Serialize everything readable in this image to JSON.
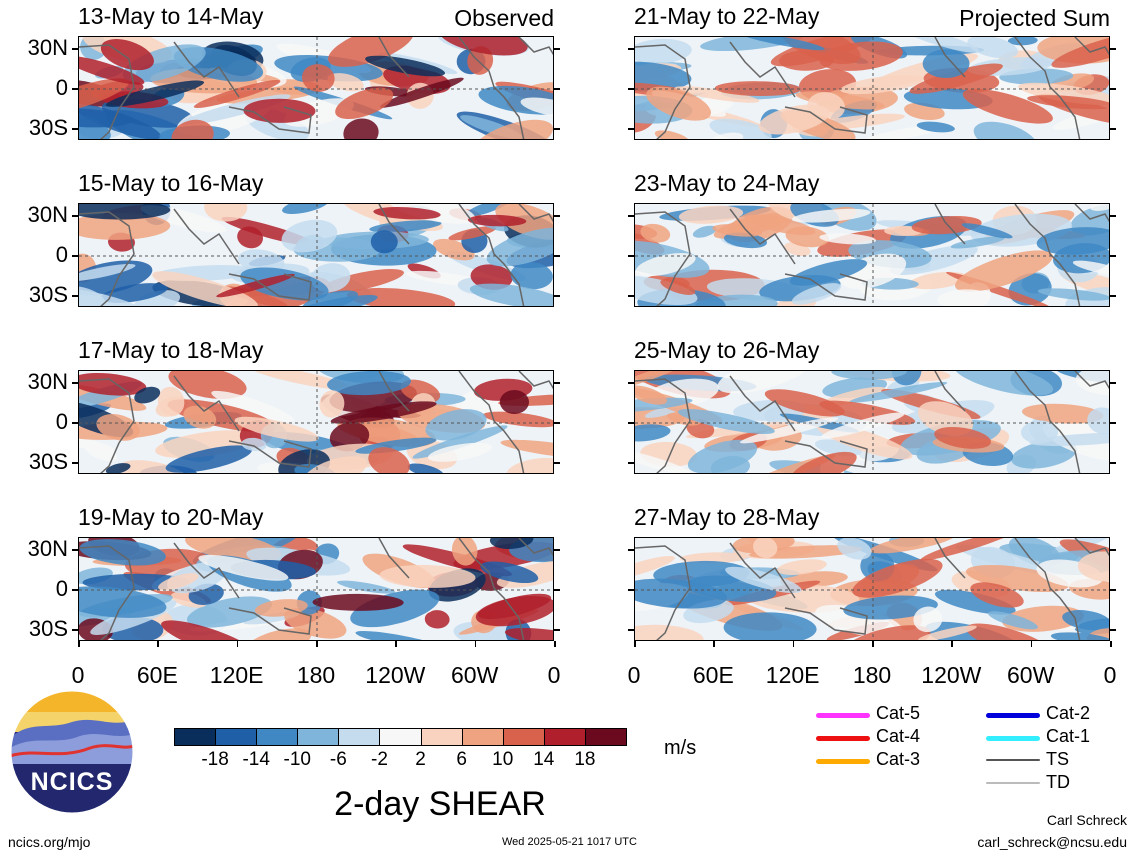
{
  "chart_data": {
    "type": "heatmap",
    "variable": "2-day SHEAR",
    "units": "m/s",
    "x_tick_labels": [
      "0",
      "60E",
      "120E",
      "180",
      "120W",
      "60W",
      "0"
    ],
    "y_tick_labels": [
      "30N",
      "0",
      "30S"
    ],
    "left_column_label": "Observed",
    "right_column_label": "Projected Sum",
    "panels_left": [
      {
        "title": "13-May to 14-May"
      },
      {
        "title": "15-May to 16-May"
      },
      {
        "title": "17-May to 18-May"
      },
      {
        "title": "19-May to 20-May"
      }
    ],
    "panels_right": [
      {
        "title": "21-May to 22-May"
      },
      {
        "title": "23-May to 24-May"
      },
      {
        "title": "25-May to 26-May"
      },
      {
        "title": "27-May to 28-May"
      }
    ],
    "colorbar": {
      "labels": [
        "-18",
        "-14",
        "-10",
        "-6",
        "-2",
        "2",
        "6",
        "10",
        "14",
        "18"
      ],
      "colors": [
        "#0a2e5c",
        "#1f5fa8",
        "#3f88c4",
        "#7fb5da",
        "#c4dcee",
        "#f7f7f7",
        "#f9d3c0",
        "#f0a380",
        "#d9624c",
        "#b0202c",
        "#6b0a1e"
      ]
    },
    "legend": [
      {
        "label": "Cat-5",
        "color": "#ff33ff"
      },
      {
        "label": "Cat-4",
        "color": "#ee1111"
      },
      {
        "label": "Cat-3",
        "color": "#ffaa00"
      },
      {
        "label": "Cat-2",
        "color": "#0000dd"
      },
      {
        "label": "Cat-1",
        "color": "#33eeff"
      },
      {
        "label": "TS",
        "color": "#555555"
      },
      {
        "label": "TD",
        "color": "#bbbbbb"
      }
    ]
  },
  "footer": {
    "logo_text": "NCICS",
    "site": "ncics.org/mjo",
    "timestamp": "Wed 2025-05-21 1017 UTC",
    "author": "Carl Schreck",
    "email": "carl_schreck@ncsu.edu",
    "units_label": "m/s",
    "main_title": "2-day SHEAR"
  }
}
